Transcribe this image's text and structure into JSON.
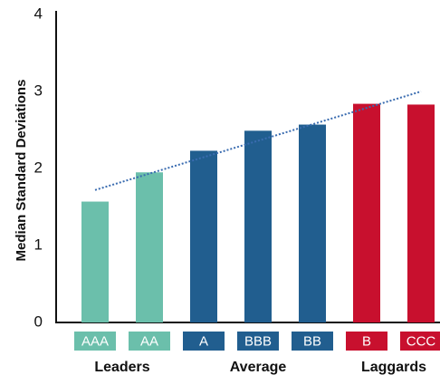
{
  "chart_data": {
    "type": "bar",
    "categories": [
      "AAA",
      "AA",
      "A",
      "BBB",
      "BB",
      "B",
      "CCC"
    ],
    "values": [
      1.57,
      1.95,
      2.23,
      2.49,
      2.57,
      2.84,
      2.83
    ],
    "groups": [
      {
        "label": "Leaders",
        "categories": [
          "AAA",
          "AA"
        ],
        "color": "#6bbfab"
      },
      {
        "label": "Average",
        "categories": [
          "A",
          "BBB",
          "BB"
        ],
        "color": "#215e8f"
      },
      {
        "label": "Laggards",
        "categories": [
          "B",
          "CCC"
        ],
        "color": "#c8102e"
      }
    ],
    "trendline": {
      "style": "dotted",
      "color": "#3a6cb0",
      "start": 1.72,
      "end": 3.0
    },
    "ylabel": "Median Standard Deviations",
    "xlabel": "",
    "ylim": [
      0,
      4
    ],
    "yticks": [
      "0",
      "1",
      "2",
      "3",
      "4"
    ],
    "grid": false
  }
}
